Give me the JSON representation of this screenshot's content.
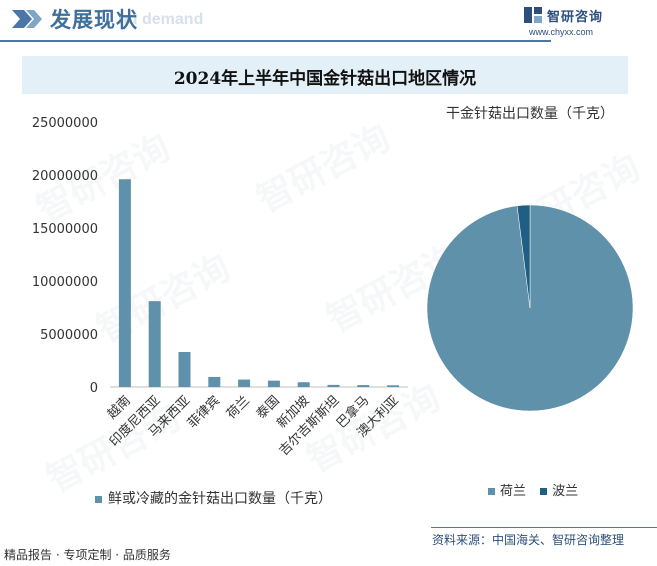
{
  "header": {
    "title": "发展现状",
    "ghost_text": "nd demand",
    "brand_name": "智研咨询",
    "brand_url": "www.chyxx.com"
  },
  "watermark": "智研咨询",
  "colors": {
    "bar": "#5f91ab",
    "pie_main": "#5f91ab",
    "pie_second": "#1f5f85",
    "accent": "#4a76a8"
  },
  "chart_data": [
    {
      "type": "bar",
      "title": "2024年上半年中国金针菇出口地区情况",
      "categories": [
        "越南",
        "印度尼西亚",
        "马来西亚",
        "菲律宾",
        "荷兰",
        "泰国",
        "新加坡",
        "吉尔吉斯斯坦",
        "巴拿马",
        "澳大利亚"
      ],
      "series": [
        {
          "name": "鲜或冷藏的金针菇出口数量（千克）",
          "values": [
            19600000,
            8100000,
            3300000,
            950000,
            700000,
            600000,
            450000,
            200000,
            180000,
            160000
          ]
        }
      ],
      "ylim": [
        0,
        25000000
      ],
      "yticks": [
        "25000000",
        "20000000",
        "15000000",
        "10000000",
        "5000000",
        "0"
      ],
      "grid": false,
      "legend": "bottom"
    },
    {
      "type": "pie",
      "title": "干金针菇出口数量（千克）",
      "labels": [
        "荷兰",
        "波兰"
      ],
      "values": [
        98,
        2
      ],
      "legend": "bottom"
    }
  ],
  "footer": {
    "source": "资料来源：中国海关、智研咨询整理",
    "tagline": "精品报告 · 专项定制 · 品质服务"
  }
}
